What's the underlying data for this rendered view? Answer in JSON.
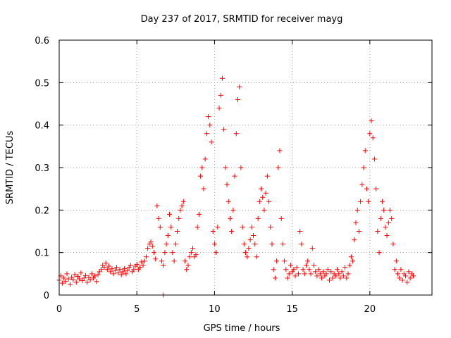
{
  "chart_data": {
    "type": "scatter",
    "title": "Day 237 of 2017, SRMTID for receiver mayg",
    "xlabel": "GPS time / hours",
    "ylabel": "SRMTID / TECUs",
    "xlim": [
      0,
      24
    ],
    "ylim": [
      0,
      0.6
    ],
    "xticks": [
      0,
      5,
      10,
      15,
      20
    ],
    "yticks": [
      0,
      0.1,
      0.2,
      0.3,
      0.4,
      0.5,
      0.6
    ],
    "xtick_labels": [
      "0",
      "5",
      "10",
      "15",
      "20"
    ],
    "ytick_labels": [
      "0",
      "0.1",
      "0.2",
      "0.3",
      "0.4",
      "0.5",
      "0.6"
    ],
    "grid": true,
    "marker": "+",
    "color": "#ff0000",
    "series": [
      {
        "name": "SRMTID",
        "points": [
          [
            0.0,
            0.035
          ],
          [
            0.1,
            0.045
          ],
          [
            0.2,
            0.028
          ],
          [
            0.3,
            0.04
          ],
          [
            0.4,
            0.032
          ],
          [
            0.5,
            0.05
          ],
          [
            0.6,
            0.038
          ],
          [
            0.7,
            0.025
          ],
          [
            0.8,
            0.042
          ],
          [
            0.9,
            0.036
          ],
          [
            1.0,
            0.048
          ],
          [
            1.1,
            0.03
          ],
          [
            1.2,
            0.044
          ],
          [
            1.3,
            0.038
          ],
          [
            1.4,
            0.052
          ],
          [
            1.5,
            0.034
          ],
          [
            1.6,
            0.04
          ],
          [
            1.7,
            0.046
          ],
          [
            1.8,
            0.03
          ],
          [
            1.9,
            0.042
          ],
          [
            2.0,
            0.036
          ],
          [
            2.1,
            0.05
          ],
          [
            2.2,
            0.04
          ],
          [
            2.3,
            0.045
          ],
          [
            2.4,
            0.032
          ],
          [
            2.5,
            0.048
          ],
          [
            2.6,
            0.055
          ],
          [
            2.7,
            0.06
          ],
          [
            2.8,
            0.07
          ],
          [
            2.9,
            0.065
          ],
          [
            3.0,
            0.075
          ],
          [
            3.1,
            0.06
          ],
          [
            3.2,
            0.068
          ],
          [
            3.3,
            0.055
          ],
          [
            3.4,
            0.062
          ],
          [
            3.5,
            0.05
          ],
          [
            3.6,
            0.058
          ],
          [
            3.7,
            0.065
          ],
          [
            3.8,
            0.052
          ],
          [
            3.9,
            0.06
          ],
          [
            4.0,
            0.048
          ],
          [
            4.1,
            0.055
          ],
          [
            4.2,
            0.062
          ],
          [
            4.3,
            0.05
          ],
          [
            4.4,
            0.058
          ],
          [
            4.5,
            0.065
          ],
          [
            4.6,
            0.07
          ],
          [
            4.7,
            0.055
          ],
          [
            4.8,
            0.06
          ],
          [
            4.9,
            0.068
          ],
          [
            5.0,
            0.072
          ],
          [
            5.1,
            0.06
          ],
          [
            5.2,
            0.065
          ],
          [
            5.3,
            0.078
          ],
          [
            5.4,
            0.07
          ],
          [
            5.5,
            0.08
          ],
          [
            5.6,
            0.09
          ],
          [
            5.7,
            0.11
          ],
          [
            5.8,
            0.12
          ],
          [
            5.9,
            0.125
          ],
          [
            6.0,
            0.115
          ],
          [
            6.1,
            0.1
          ],
          [
            6.2,
            0.085
          ],
          [
            6.3,
            0.21
          ],
          [
            6.4,
            0.18
          ],
          [
            6.5,
            0.16
          ],
          [
            6.6,
            0.08
          ],
          [
            6.7,
            0.07
          ],
          [
            6.8,
            0.1
          ],
          [
            6.9,
            0.12
          ],
          [
            7.0,
            0.14
          ],
          [
            7.1,
            0.19
          ],
          [
            7.2,
            0.16
          ],
          [
            7.3,
            0.1
          ],
          [
            7.4,
            0.08
          ],
          [
            7.5,
            0.12
          ],
          [
            7.6,
            0.15
          ],
          [
            7.7,
            0.18
          ],
          [
            7.8,
            0.2
          ],
          [
            7.9,
            0.21
          ],
          [
            8.0,
            0.22
          ],
          [
            8.1,
            0.08
          ],
          [
            8.2,
            0.06
          ],
          [
            8.3,
            0.07
          ],
          [
            8.4,
            0.09
          ],
          [
            8.5,
            0.1
          ],
          [
            8.6,
            0.11
          ],
          [
            8.7,
            0.09
          ],
          [
            8.8,
            0.095
          ],
          [
            8.9,
            0.16
          ],
          [
            9.0,
            0.19
          ],
          [
            9.1,
            0.28
          ],
          [
            9.2,
            0.3
          ],
          [
            9.3,
            0.25
          ],
          [
            9.4,
            0.32
          ],
          [
            9.5,
            0.38
          ],
          [
            9.6,
            0.42
          ],
          [
            9.7,
            0.4
          ],
          [
            9.8,
            0.36
          ],
          [
            9.9,
            0.15
          ],
          [
            10.0,
            0.12
          ],
          [
            10.1,
            0.1
          ],
          [
            10.2,
            0.16
          ],
          [
            10.3,
            0.44
          ],
          [
            10.4,
            0.47
          ],
          [
            10.5,
            0.51
          ],
          [
            10.6,
            0.39
          ],
          [
            10.7,
            0.3
          ],
          [
            10.8,
            0.26
          ],
          [
            10.9,
            0.22
          ],
          [
            11.0,
            0.18
          ],
          [
            11.1,
            0.15
          ],
          [
            11.2,
            0.2
          ],
          [
            11.3,
            0.28
          ],
          [
            11.4,
            0.38
          ],
          [
            11.5,
            0.46
          ],
          [
            11.6,
            0.49
          ],
          [
            11.7,
            0.3
          ],
          [
            11.8,
            0.16
          ],
          [
            11.9,
            0.12
          ],
          [
            12.0,
            0.1
          ],
          [
            12.1,
            0.09
          ],
          [
            12.2,
            0.11
          ],
          [
            12.3,
            0.13
          ],
          [
            12.4,
            0.16
          ],
          [
            12.5,
            0.14
          ],
          [
            12.6,
            0.12
          ],
          [
            12.7,
            0.09
          ],
          [
            12.8,
            0.18
          ],
          [
            12.9,
            0.22
          ],
          [
            13.0,
            0.25
          ],
          [
            13.1,
            0.23
          ],
          [
            13.2,
            0.2
          ],
          [
            13.3,
            0.24
          ],
          [
            13.4,
            0.28
          ],
          [
            13.5,
            0.22
          ],
          [
            13.6,
            0.16
          ],
          [
            13.7,
            0.12
          ],
          [
            13.8,
            0.06
          ],
          [
            13.9,
            0.04
          ],
          [
            14.0,
            0.08
          ],
          [
            14.1,
            0.3
          ],
          [
            14.2,
            0.34
          ],
          [
            14.3,
            0.18
          ],
          [
            14.4,
            0.12
          ],
          [
            14.5,
            0.08
          ],
          [
            14.6,
            0.06
          ],
          [
            14.7,
            0.04
          ],
          [
            14.8,
            0.05
          ],
          [
            14.9,
            0.07
          ],
          [
            15.0,
            0.055
          ],
          [
            15.1,
            0.06
          ],
          [
            15.2,
            0.045
          ],
          [
            15.3,
            0.065
          ],
          [
            15.4,
            0.05
          ],
          [
            15.5,
            0.15
          ],
          [
            15.6,
            0.12
          ],
          [
            15.7,
            0.06
          ],
          [
            15.8,
            0.05
          ],
          [
            15.9,
            0.07
          ],
          [
            16.0,
            0.08
          ],
          [
            16.1,
            0.06
          ],
          [
            16.2,
            0.05
          ],
          [
            16.3,
            0.11
          ],
          [
            16.4,
            0.07
          ],
          [
            16.5,
            0.055
          ],
          [
            16.6,
            0.045
          ],
          [
            16.7,
            0.06
          ],
          [
            16.8,
            0.05
          ],
          [
            16.9,
            0.04
          ],
          [
            17.0,
            0.055
          ],
          [
            17.1,
            0.045
          ],
          [
            17.2,
            0.05
          ],
          [
            17.3,
            0.06
          ],
          [
            17.4,
            0.035
          ],
          [
            17.5,
            0.055
          ],
          [
            17.6,
            0.04
          ],
          [
            17.7,
            0.05
          ],
          [
            17.8,
            0.045
          ],
          [
            17.9,
            0.06
          ],
          [
            18.0,
            0.05
          ],
          [
            18.1,
            0.04
          ],
          [
            18.2,
            0.055
          ],
          [
            18.3,
            0.045
          ],
          [
            18.4,
            0.065
          ],
          [
            18.5,
            0.04
          ],
          [
            18.6,
            0.05
          ],
          [
            18.7,
            0.07
          ],
          [
            18.8,
            0.09
          ],
          [
            18.9,
            0.08
          ],
          [
            19.0,
            0.13
          ],
          [
            19.1,
            0.17
          ],
          [
            19.2,
            0.2
          ],
          [
            19.3,
            0.15
          ],
          [
            19.4,
            0.22
          ],
          [
            19.5,
            0.26
          ],
          [
            19.6,
            0.3
          ],
          [
            19.7,
            0.34
          ],
          [
            19.8,
            0.25
          ],
          [
            19.9,
            0.22
          ],
          [
            20.0,
            0.38
          ],
          [
            20.1,
            0.41
          ],
          [
            20.2,
            0.37
          ],
          [
            20.3,
            0.32
          ],
          [
            20.4,
            0.25
          ],
          [
            20.5,
            0.15
          ],
          [
            20.6,
            0.1
          ],
          [
            20.7,
            0.18
          ],
          [
            20.8,
            0.22
          ],
          [
            20.9,
            0.2
          ],
          [
            21.0,
            0.16
          ],
          [
            21.1,
            0.14
          ],
          [
            21.2,
            0.17
          ],
          [
            21.3,
            0.2
          ],
          [
            21.4,
            0.18
          ],
          [
            21.5,
            0.12
          ],
          [
            21.6,
            0.06
          ],
          [
            21.7,
            0.08
          ],
          [
            21.8,
            0.05
          ],
          [
            21.9,
            0.04
          ],
          [
            22.0,
            0.06
          ],
          [
            22.1,
            0.035
          ],
          [
            22.2,
            0.05
          ],
          [
            22.3,
            0.045
          ],
          [
            22.4,
            0.03
          ],
          [
            22.5,
            0.055
          ],
          [
            22.6,
            0.04
          ],
          [
            22.7,
            0.05
          ],
          [
            22.8,
            0.045
          ],
          [
            6.7,
            0.0
          ]
        ]
      }
    ]
  }
}
